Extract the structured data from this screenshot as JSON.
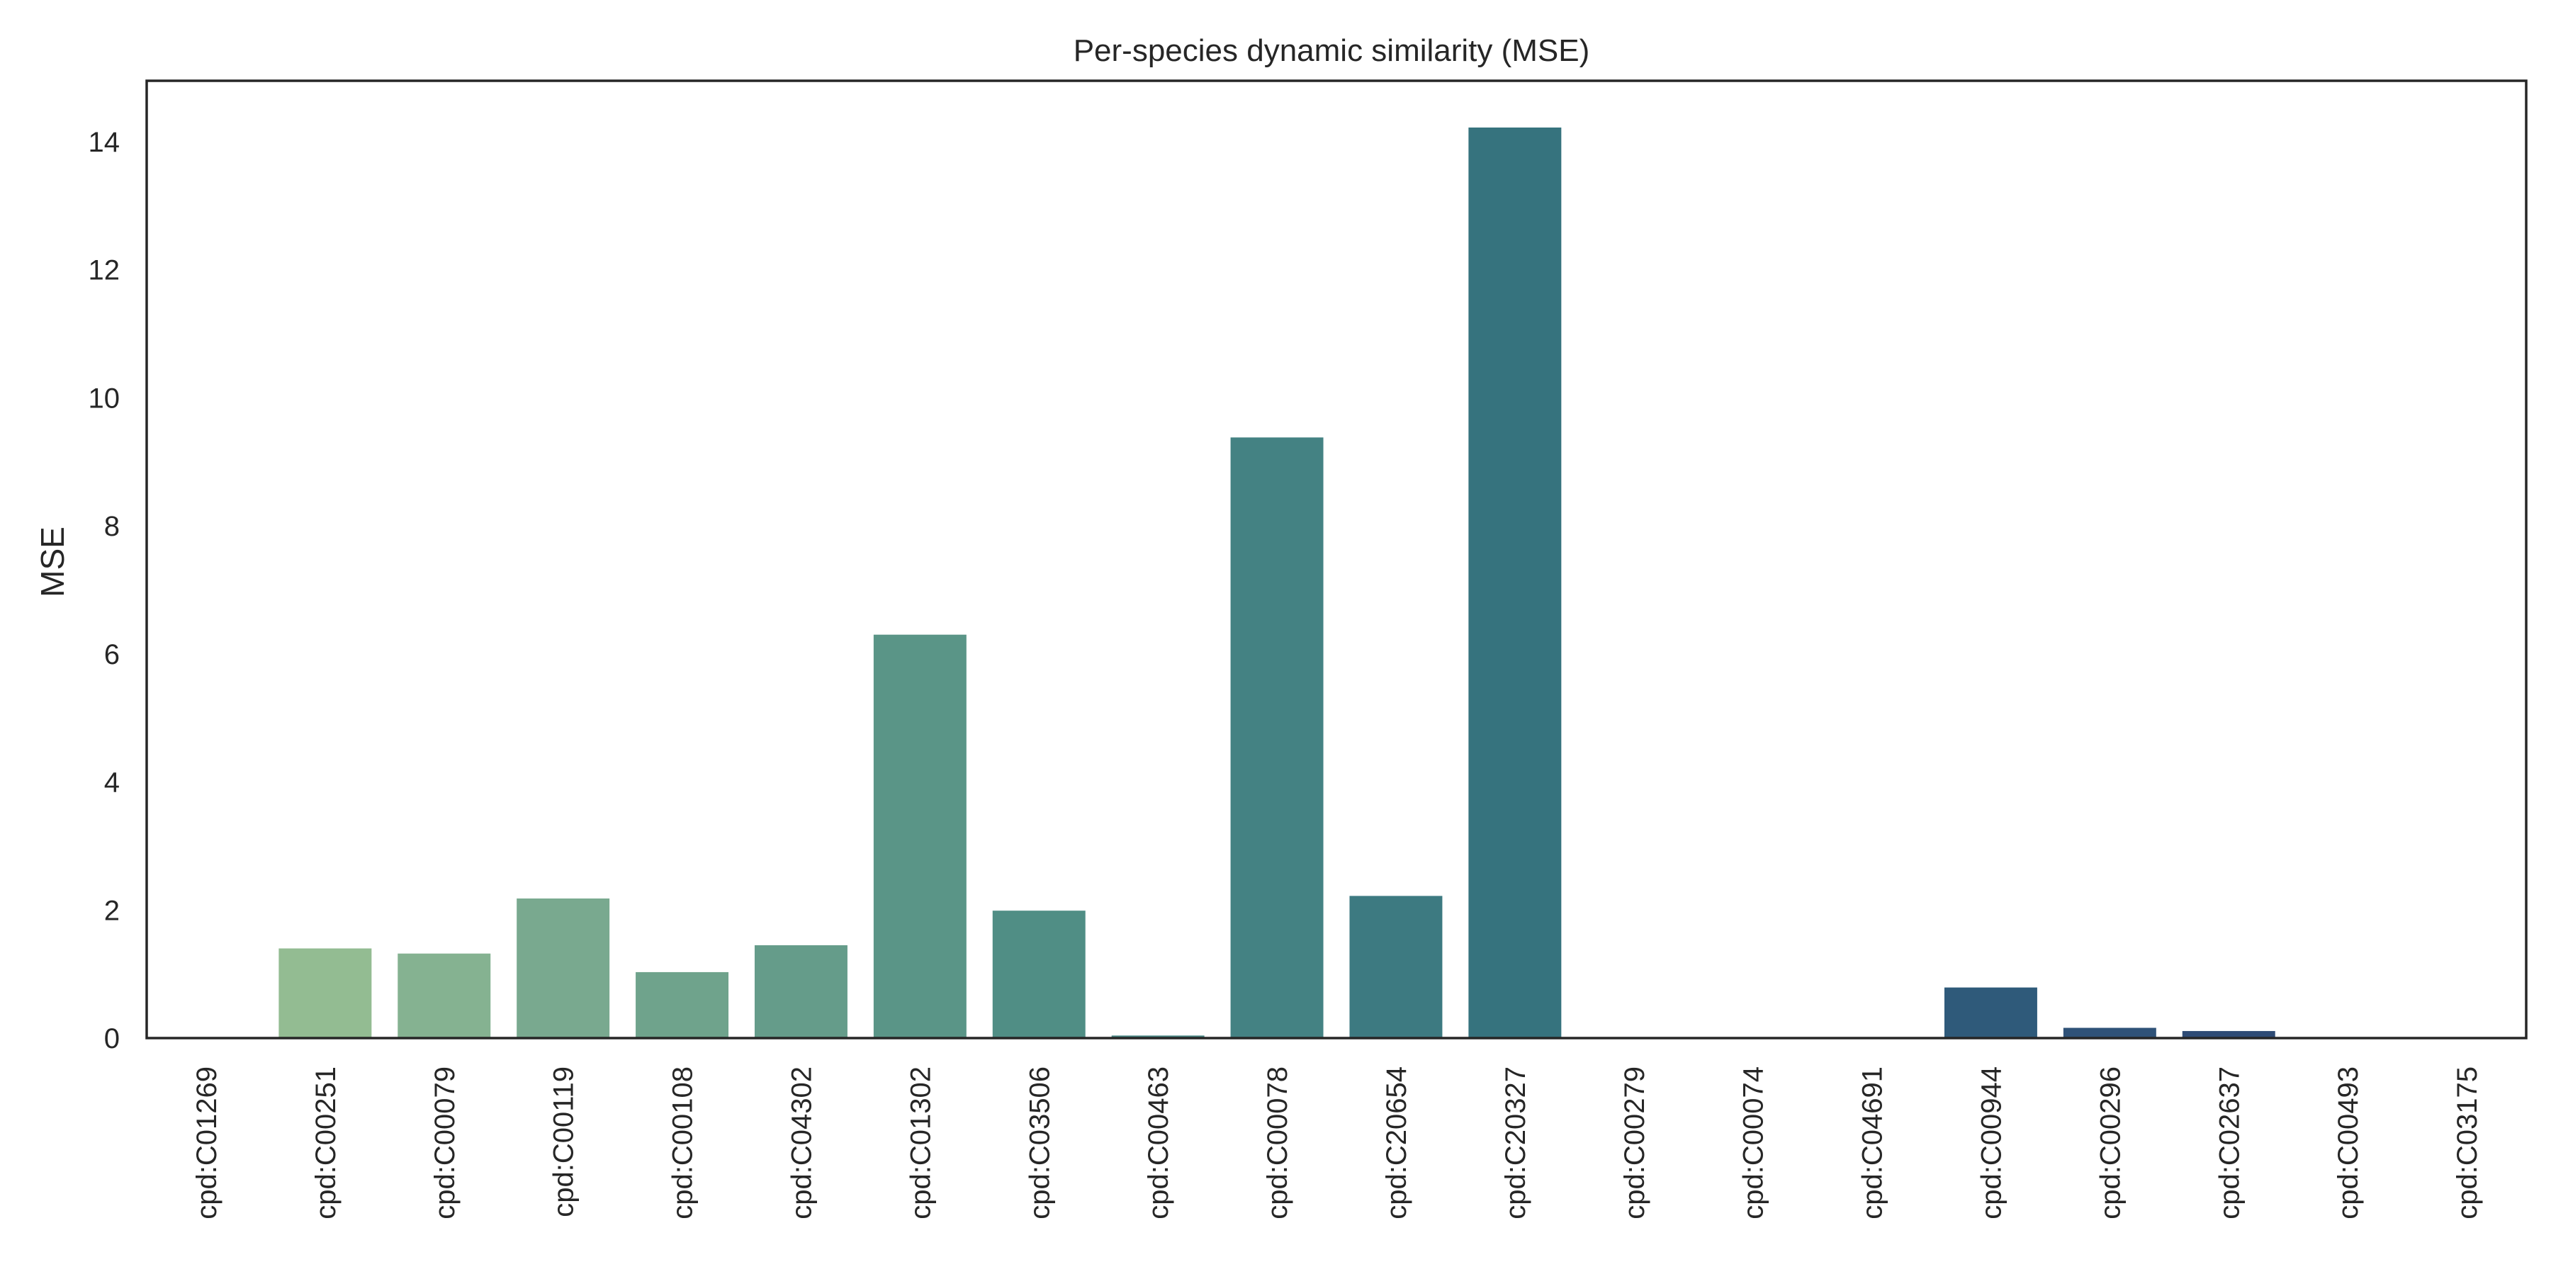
{
  "chart_data": {
    "type": "bar",
    "title": "Per-species dynamic similarity (MSE)",
    "xlabel": "",
    "ylabel": "MSE",
    "ylim": [
      0,
      14.95
    ],
    "yticks": [
      "0",
      "2",
      "4",
      "6",
      "8",
      "10",
      "12",
      "14"
    ],
    "grid": false,
    "legend": "none",
    "categories": [
      "cpd:C01269",
      "cpd:C00251",
      "cpd:C00079",
      "cpd:C00119",
      "cpd:C00108",
      "cpd:C04302",
      "cpd:C01302",
      "cpd:C03506",
      "cpd:C00463",
      "cpd:C00078",
      "cpd:C20654",
      "cpd:C20327",
      "cpd:C00279",
      "cpd:C00074",
      "cpd:C04691",
      "cpd:C00944",
      "cpd:C00296",
      "cpd:C02637",
      "cpd:C00493",
      "cpd:C03175"
    ],
    "values": [
      0.0,
      1.4,
      1.32,
      2.18,
      1.03,
      1.45,
      6.3,
      1.99,
      0.04,
      9.38,
      2.22,
      14.22,
      0.0,
      0.0,
      0.0,
      0.79,
      0.16,
      0.11,
      0.0,
      0.0
    ],
    "colors": [
      "#9ec499",
      "#93bc92",
      "#85b291",
      "#79a98f",
      "#6fa38c",
      "#659c8a",
      "#5a9587",
      "#508e85",
      "#4a8884",
      "#448283",
      "#3d7a81",
      "#36737e",
      "#326c7c",
      "#30667b",
      "#2f6079",
      "#2f5a7a",
      "#2f5278",
      "#2e4b75",
      "#2c4472",
      "#2b3e6f"
    ],
    "frame_color": "#262626"
  }
}
